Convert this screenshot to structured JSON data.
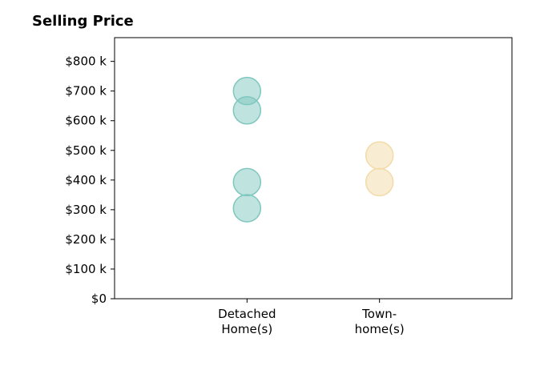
{
  "chart_data": {
    "type": "scatter",
    "title": "Selling Price",
    "xlabel": "",
    "ylabel": "",
    "categories": [
      "Detached\nHome(s)",
      "Town-\nhome(s)"
    ],
    "y_ticks": [
      {
        "value": 0,
        "label": "$0"
      },
      {
        "value": 100,
        "label": "$100 k"
      },
      {
        "value": 200,
        "label": "$200 k"
      },
      {
        "value": 300,
        "label": "$300 k"
      },
      {
        "value": 400,
        "label": "$400 k"
      },
      {
        "value": 500,
        "label": "$500 k"
      },
      {
        "value": 600,
        "label": "$600 k"
      },
      {
        "value": 700,
        "label": "$700 k"
      },
      {
        "value": 800,
        "label": "$800 k"
      }
    ],
    "ylim": [
      0,
      880
    ],
    "xlim": [
      -1,
      2
    ],
    "grid": false,
    "legend": "none",
    "series": [
      {
        "category_index": 0,
        "color": "#7fc7bf",
        "values": [
          700,
          635,
          393,
          305
        ]
      },
      {
        "category_index": 1,
        "color": "#f2dba8",
        "values": [
          483,
          393
        ]
      }
    ]
  }
}
